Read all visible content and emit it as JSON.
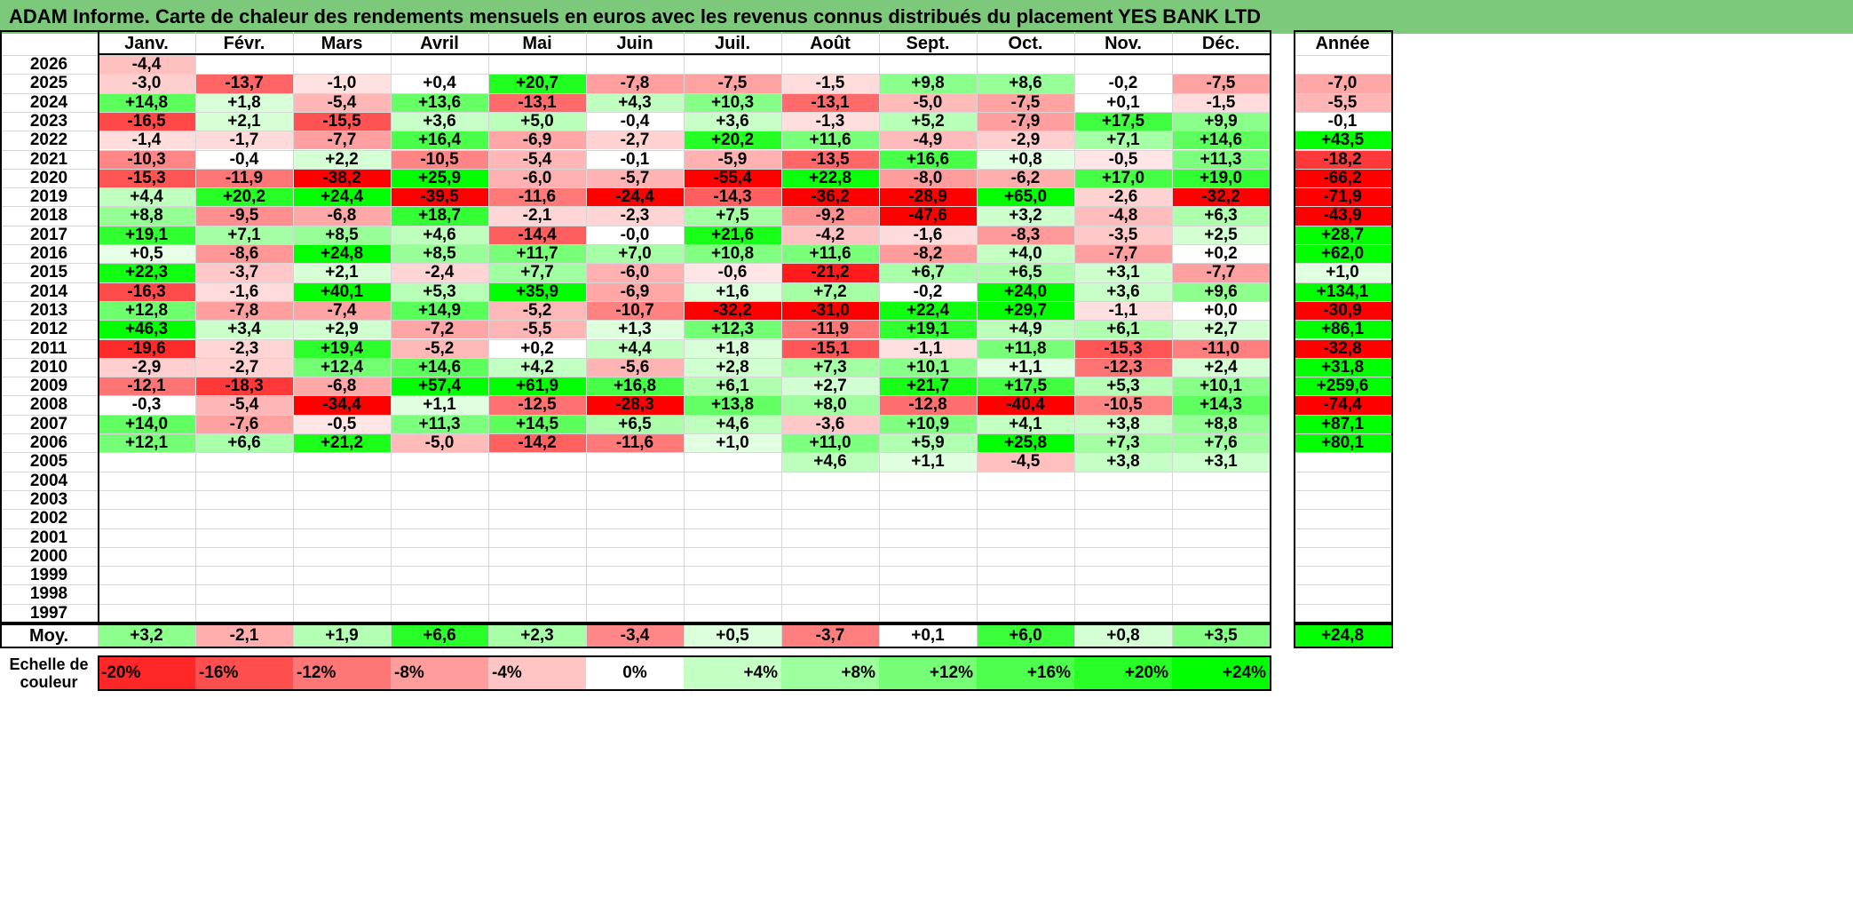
{
  "title": "ADAM Informe. Carte de chaleur des rendements mensuels en euros avec les revenus connus distribués du placement YES BANK LTD",
  "colors": {
    "title_bg": "#7dc97b",
    "positive_max": "#00ff00",
    "negative_max": "#ff0000",
    "neutral": "#ffffff"
  },
  "chart_data": {
    "type": "heatmap",
    "title": "ADAM Informe. Carte de chaleur des rendements mensuels en euros avec les revenus connus distribués du placement YES BANK LTD",
    "columns": [
      "Janv.",
      "Févr.",
      "Mars",
      "Avril",
      "Mai",
      "Juin",
      "Juil.",
      "Août",
      "Sept.",
      "Oct.",
      "Nov.",
      "Déc."
    ],
    "year_header": "Année",
    "rows": [
      {
        "year": "2026",
        "values": [
          "-4,4",
          "",
          "",
          "",
          "",
          "",
          "",
          "",
          "",
          "",
          "",
          ""
        ],
        "annual": ""
      },
      {
        "year": "2025",
        "values": [
          "-3,0",
          "-13,7",
          "-1,0",
          "+0,4",
          "+20,7",
          "-7,8",
          "-7,5",
          "-1,5",
          "+9,8",
          "+8,6",
          "-0,2",
          "-7,5"
        ],
        "annual": "-7,0"
      },
      {
        "year": "2024",
        "values": [
          "+14,8",
          "+1,8",
          "-5,4",
          "+13,6",
          "-13,1",
          "+4,3",
          "+10,3",
          "-13,1",
          "-5,0",
          "-7,5",
          "+0,1",
          "-1,5"
        ],
        "annual": "-5,5"
      },
      {
        "year": "2023",
        "values": [
          "-16,5",
          "+2,1",
          "-15,5",
          "+3,6",
          "+5,0",
          "-0,4",
          "+3,6",
          "-1,3",
          "+5,2",
          "-7,9",
          "+17,5",
          "+9,9"
        ],
        "annual": "-0,1"
      },
      {
        "year": "2022",
        "values": [
          "-1,4",
          "-1,7",
          "-7,7",
          "+16,4",
          "-6,9",
          "-2,7",
          "+20,2",
          "+11,6",
          "-4,9",
          "-2,9",
          "+7,1",
          "+14,6"
        ],
        "annual": "+43,5"
      },
      {
        "year": "2021",
        "values": [
          "-10,3",
          "-0,4",
          "+2,2",
          "-10,5",
          "-5,4",
          "-0,1",
          "-5,9",
          "-13,5",
          "+16,6",
          "+0,8",
          "-0,5",
          "+11,3"
        ],
        "annual": "-18,2"
      },
      {
        "year": "2020",
        "values": [
          "-15,3",
          "-11,9",
          "-38,2",
          "+25,9",
          "-6,0",
          "-5,7",
          "-55,4",
          "+22,8",
          "-8,0",
          "-6,2",
          "+17,0",
          "+19,0"
        ],
        "annual": "-66,2"
      },
      {
        "year": "2019",
        "values": [
          "+4,4",
          "+20,2",
          "+24,4",
          "-39,5",
          "-11,6",
          "-24,4",
          "-14,3",
          "-36,2",
          "-28,9",
          "+65,0",
          "-2,6",
          "-32,2"
        ],
        "annual": "-71,9"
      },
      {
        "year": "2018",
        "values": [
          "+8,8",
          "-9,5",
          "-6,8",
          "+18,7",
          "-2,1",
          "-2,3",
          "+7,5",
          "-9,2",
          "-47,6",
          "+3,2",
          "-4,8",
          "+6,3"
        ],
        "annual": "-43,9"
      },
      {
        "year": "2017",
        "values": [
          "+19,1",
          "+7,1",
          "+8,5",
          "+4,6",
          "-14,4",
          "-0,0",
          "+21,6",
          "-4,2",
          "-1,6",
          "-8,3",
          "-3,5",
          "+2,5"
        ],
        "annual": "+28,7"
      },
      {
        "year": "2016",
        "values": [
          "+0,5",
          "-8,6",
          "+24,8",
          "+8,5",
          "+11,7",
          "+7,0",
          "+10,8",
          "+11,6",
          "-8,2",
          "+4,0",
          "-7,7",
          "+0,2"
        ],
        "annual": "+62,0"
      },
      {
        "year": "2015",
        "values": [
          "+22,3",
          "-3,7",
          "+2,1",
          "-2,4",
          "+7,7",
          "-6,0",
          "-0,6",
          "-21,2",
          "+6,7",
          "+6,5",
          "+3,1",
          "-7,7"
        ],
        "annual": "+1,0"
      },
      {
        "year": "2014",
        "values": [
          "-16,3",
          "-1,6",
          "+40,1",
          "+5,3",
          "+35,9",
          "-6,9",
          "+1,6",
          "+7,2",
          "-0,2",
          "+24,0",
          "+3,6",
          "+9,6"
        ],
        "annual": "+134,1"
      },
      {
        "year": "2013",
        "values": [
          "+12,8",
          "-7,8",
          "-7,4",
          "+14,9",
          "-5,2",
          "-10,7",
          "-32,2",
          "-31,0",
          "+22,4",
          "+29,7",
          "-1,1",
          "+0,0"
        ],
        "annual": "-30,9"
      },
      {
        "year": "2012",
        "values": [
          "+46,3",
          "+3,4",
          "+2,9",
          "-7,2",
          "-5,5",
          "+1,3",
          "+12,3",
          "-11,9",
          "+19,1",
          "+4,9",
          "+6,1",
          "+2,7"
        ],
        "annual": "+86,1"
      },
      {
        "year": "2011",
        "values": [
          "-19,6",
          "-2,3",
          "+19,4",
          "-5,2",
          "+0,2",
          "+4,4",
          "+1,8",
          "-15,1",
          "-1,1",
          "+11,8",
          "-15,3",
          "-11,0"
        ],
        "annual": "-32,8"
      },
      {
        "year": "2010",
        "values": [
          "-2,9",
          "-2,7",
          "+12,4",
          "+14,6",
          "+4,2",
          "-5,6",
          "+2,8",
          "+7,3",
          "+10,1",
          "+1,1",
          "-12,3",
          "+2,4"
        ],
        "annual": "+31,8"
      },
      {
        "year": "2009",
        "values": [
          "-12,1",
          "-18,3",
          "-6,8",
          "+57,4",
          "+61,9",
          "+16,8",
          "+6,1",
          "+2,7",
          "+21,7",
          "+17,5",
          "+5,3",
          "+10,1"
        ],
        "annual": "+259,6"
      },
      {
        "year": "2008",
        "values": [
          "-0,3",
          "-5,4",
          "-34,4",
          "+1,1",
          "-12,5",
          "-28,3",
          "+13,8",
          "+8,0",
          "-12,8",
          "-40,4",
          "-10,5",
          "+14,3"
        ],
        "annual": "-74,4"
      },
      {
        "year": "2007",
        "values": [
          "+14,0",
          "-7,6",
          "-0,5",
          "+11,3",
          "+14,5",
          "+6,5",
          "+4,6",
          "-3,6",
          "+10,9",
          "+4,1",
          "+3,8",
          "+8,8"
        ],
        "annual": "+87,1"
      },
      {
        "year": "2006",
        "values": [
          "+12,1",
          "+6,6",
          "+21,2",
          "-5,0",
          "-14,2",
          "-11,6",
          "+1,0",
          "+11,0",
          "+5,9",
          "+25,8",
          "+7,3",
          "+7,6"
        ],
        "annual": "+80,1"
      },
      {
        "year": "2005",
        "values": [
          "",
          "",
          "",
          "",
          "",
          "",
          "",
          "+4,6",
          "+1,1",
          "-4,5",
          "+3,8",
          "+3,1"
        ],
        "annual": ""
      },
      {
        "year": "2004",
        "values": [
          "",
          "",
          "",
          "",
          "",
          "",
          "",
          "",
          "",
          "",
          "",
          ""
        ],
        "annual": ""
      },
      {
        "year": "2003",
        "values": [
          "",
          "",
          "",
          "",
          "",
          "",
          "",
          "",
          "",
          "",
          "",
          ""
        ],
        "annual": ""
      },
      {
        "year": "2002",
        "values": [
          "",
          "",
          "",
          "",
          "",
          "",
          "",
          "",
          "",
          "",
          "",
          ""
        ],
        "annual": ""
      },
      {
        "year": "2001",
        "values": [
          "",
          "",
          "",
          "",
          "",
          "",
          "",
          "",
          "",
          "",
          "",
          ""
        ],
        "annual": ""
      },
      {
        "year": "2000",
        "values": [
          "",
          "",
          "",
          "",
          "",
          "",
          "",
          "",
          "",
          "",
          "",
          ""
        ],
        "annual": ""
      },
      {
        "year": "1999",
        "values": [
          "",
          "",
          "",
          "",
          "",
          "",
          "",
          "",
          "",
          "",
          "",
          ""
        ],
        "annual": ""
      },
      {
        "year": "1998",
        "values": [
          "",
          "",
          "",
          "",
          "",
          "",
          "",
          "",
          "",
          "",
          "",
          ""
        ],
        "annual": ""
      },
      {
        "year": "1997",
        "values": [
          "",
          "",
          "",
          "",
          "",
          "",
          "",
          "",
          "",
          "",
          "",
          ""
        ],
        "annual": ""
      }
    ],
    "average": {
      "label": "Moy.",
      "values": [
        "+3,2",
        "-2,1",
        "+1,9",
        "+6,6",
        "+2,3",
        "-3,4",
        "+0,5",
        "-3,7",
        "+0,1",
        "+6,0",
        "+0,8",
        "+3,5"
      ],
      "annual": "+24,8"
    },
    "scale": {
      "label_line1": "Echelle de",
      "label_line2": "couleur",
      "steps": [
        {
          "label": "-20%",
          "value": -20
        },
        {
          "label": "-16%",
          "value": -16
        },
        {
          "label": "-12%",
          "value": -12
        },
        {
          "label": "-8%",
          "value": -8
        },
        {
          "label": "-4%",
          "value": -4
        },
        {
          "label": "0%",
          "value": 0
        },
        {
          "label": "+4%",
          "value": 4
        },
        {
          "label": "+8%",
          "value": 8
        },
        {
          "label": "+12%",
          "value": 12
        },
        {
          "label": "+16%",
          "value": 16
        },
        {
          "label": "+20%",
          "value": 20
        },
        {
          "label": "+24%",
          "value": 24
        }
      ]
    }
  }
}
